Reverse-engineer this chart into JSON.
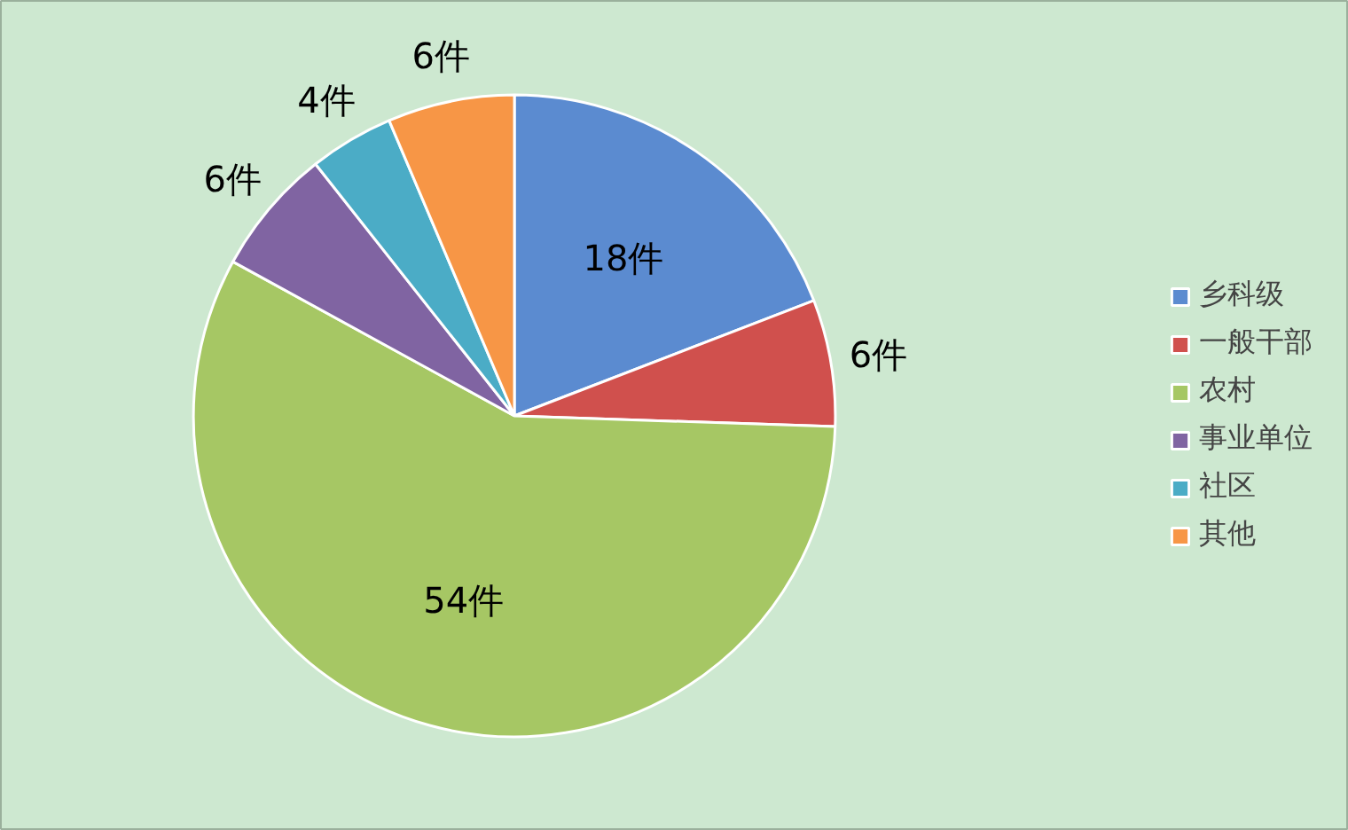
{
  "chart_data": {
    "type": "pie",
    "categories": [
      "乡科级",
      "一般干部",
      "农村",
      "事业单位",
      "社区",
      "其他"
    ],
    "values": [
      18,
      6,
      54,
      6,
      4,
      6
    ],
    "colors": [
      "#5b8bd0",
      "#d0504d",
      "#a6c764",
      "#8064a2",
      "#4bacc6",
      "#f79646"
    ],
    "value_labels": [
      "18件",
      "6件",
      "54件",
      "6件",
      "4件",
      "6件"
    ],
    "legend": "right"
  }
}
